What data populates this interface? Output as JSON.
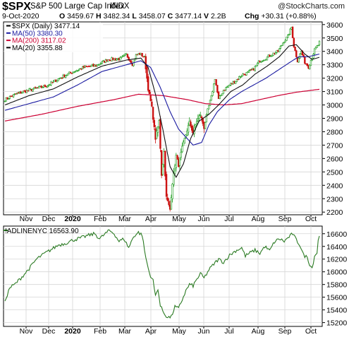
{
  "header": {
    "symbol": "$SPX",
    "name": "S&P 500 Large Cap Index",
    "exchange": "INDX",
    "watermark": "@StockCharts.com",
    "date": "9-Oct-2020",
    "open_label": "O",
    "open": "3459.67",
    "high_label": "H",
    "high": "3482.34",
    "low_label": "L",
    "low": "3458.07",
    "close_label": "C",
    "close": "3477.14",
    "volume_label": "V",
    "volume": "2.2B",
    "change_label": "Chg",
    "change": "+30.31 (+0.88%)"
  },
  "chart_data": [
    {
      "type": "candlestick",
      "legend": [
        {
          "label": "$SPX (Daily) 3477.14",
          "color": "#000000"
        },
        {
          "label": "MA(50) 3380.30",
          "color": "#1a1aa0"
        },
        {
          "label": "MA(200) 3117.02",
          "color": "#cc0033"
        },
        {
          "label": "MA(20) 3355.88",
          "color": "#000000"
        }
      ],
      "colors": {
        "up": "#1a9a1a",
        "down": "#cc1111",
        "ma50": "#1a1aa0",
        "ma200": "#cc0033",
        "ma20": "#111111"
      },
      "ylim": [
        2180,
        3620
      ],
      "yticks": [
        2200,
        2300,
        2400,
        2500,
        2600,
        2700,
        2800,
        2900,
        3000,
        3100,
        3200,
        3300,
        3400,
        3500,
        3600
      ],
      "x_months": [
        "Nov",
        "Dec",
        "2020",
        "Feb",
        "Mar",
        "Apr",
        "May",
        "Jun",
        "Jul",
        "Aug",
        "Sep",
        "Oct"
      ],
      "grid": true,
      "close_anchors": [
        [
          0,
          3040
        ],
        [
          10,
          3085
        ],
        [
          22,
          3115
        ],
        [
          35,
          3145
        ],
        [
          45,
          3200
        ],
        [
          55,
          3245
        ],
        [
          65,
          3280
        ],
        [
          75,
          3295
        ],
        [
          85,
          3340
        ],
        [
          95,
          3345
        ],
        [
          100,
          3375
        ],
        [
          105,
          3305
        ],
        [
          108,
          3370
        ],
        [
          111,
          3385
        ],
        [
          115,
          3355
        ],
        [
          118,
          3120
        ],
        [
          121,
          2980
        ],
        [
          124,
          2750
        ],
        [
          127,
          2880
        ],
        [
          129,
          2480
        ],
        [
          131,
          2650
        ],
        [
          133,
          2310
        ],
        [
          136,
          2220
        ],
        [
          138,
          2420
        ],
        [
          141,
          2620
        ],
        [
          143,
          2550
        ],
        [
          146,
          2680
        ],
        [
          149,
          2780
        ],
        [
          152,
          2870
        ],
        [
          155,
          2790
        ],
        [
          158,
          2880
        ],
        [
          161,
          2930
        ],
        [
          164,
          2830
        ],
        [
          167,
          2960
        ],
        [
          170,
          3060
        ],
        [
          173,
          3200
        ],
        [
          176,
          3040
        ],
        [
          180,
          3110
        ],
        [
          185,
          3150
        ],
        [
          190,
          3180
        ],
        [
          195,
          3225
        ],
        [
          200,
          3240
        ],
        [
          205,
          3270
        ],
        [
          210,
          3330
        ],
        [
          215,
          3350
        ],
        [
          220,
          3380
        ],
        [
          225,
          3400
        ],
        [
          230,
          3480
        ],
        [
          233,
          3510
        ],
        [
          236,
          3580
        ],
        [
          238,
          3440
        ],
        [
          241,
          3330
        ],
        [
          244,
          3400
        ],
        [
          247,
          3320
        ],
        [
          250,
          3285
        ],
        [
          253,
          3360
        ],
        [
          255,
          3410
        ],
        [
          258,
          3447
        ],
        [
          259,
          3477
        ]
      ],
      "ma_anchors": {
        "ma50": [
          [
            0,
            2960
          ],
          [
            20,
            3010
          ],
          [
            40,
            3060
          ],
          [
            60,
            3150
          ],
          [
            80,
            3250
          ],
          [
            100,
            3300
          ],
          [
            112,
            3330
          ],
          [
            120,
            3280
          ],
          [
            128,
            3130
          ],
          [
            136,
            2950
          ],
          [
            143,
            2820
          ],
          [
            150,
            2750
          ],
          [
            155,
            2700
          ],
          [
            162,
            2720
          ],
          [
            168,
            2850
          ],
          [
            175,
            2950
          ],
          [
            185,
            3040
          ],
          [
            195,
            3100
          ],
          [
            205,
            3150
          ],
          [
            215,
            3200
          ],
          [
            225,
            3260
          ],
          [
            235,
            3320
          ],
          [
            242,
            3360
          ],
          [
            250,
            3360
          ],
          [
            259,
            3380
          ]
        ],
        "ma200": [
          [
            0,
            2880
          ],
          [
            30,
            2930
          ],
          [
            60,
            2990
          ],
          [
            90,
            3040
          ],
          [
            110,
            3080
          ],
          [
            130,
            3070
          ],
          [
            150,
            3040
          ],
          [
            165,
            3010
          ],
          [
            180,
            3000
          ],
          [
            195,
            3010
          ],
          [
            210,
            3040
          ],
          [
            225,
            3070
          ],
          [
            240,
            3095
          ],
          [
            259,
            3117
          ]
        ],
        "ma20": [
          [
            0,
            3000
          ],
          [
            20,
            3070
          ],
          [
            40,
            3120
          ],
          [
            60,
            3210
          ],
          [
            80,
            3290
          ],
          [
            100,
            3335
          ],
          [
            112,
            3350
          ],
          [
            118,
            3280
          ],
          [
            124,
            3080
          ],
          [
            130,
            2820
          ],
          [
            136,
            2540
          ],
          [
            141,
            2460
          ],
          [
            147,
            2560
          ],
          [
            153,
            2750
          ],
          [
            160,
            2880
          ],
          [
            168,
            2930
          ],
          [
            176,
            3000
          ],
          [
            186,
            3100
          ],
          [
            196,
            3150
          ],
          [
            206,
            3230
          ],
          [
            216,
            3290
          ],
          [
            226,
            3360
          ],
          [
            234,
            3440
          ],
          [
            240,
            3450
          ],
          [
            247,
            3380
          ],
          [
            253,
            3340
          ],
          [
            259,
            3356
          ]
        ]
      }
    },
    {
      "type": "line",
      "legend": [
        {
          "label": "!ADLINENYC 16563.90",
          "color": "#000000"
        }
      ],
      "series": [
        {
          "name": "!ADLINENYC",
          "color": "#2a7a22"
        }
      ],
      "ylim": [
        15140,
        16720
      ],
      "yticks": [
        15200,
        15400,
        15600,
        15800,
        16000,
        16200,
        16400,
        16600
      ],
      "x_months": [
        "Nov",
        "Dec",
        "2020",
        "Feb",
        "Mar",
        "Apr",
        "May",
        "Jun",
        "Jul",
        "Aug",
        "Sep",
        "Oct"
      ],
      "grid": true,
      "anchors": [
        [
          0,
          15540
        ],
        [
          4,
          15750
        ],
        [
          8,
          15800
        ],
        [
          14,
          15920
        ],
        [
          20,
          16050
        ],
        [
          26,
          16200
        ],
        [
          32,
          16280
        ],
        [
          38,
          16350
        ],
        [
          44,
          16420
        ],
        [
          50,
          16450
        ],
        [
          56,
          16500
        ],
        [
          62,
          16530
        ],
        [
          68,
          16570
        ],
        [
          74,
          16600
        ],
        [
          78,
          16520
        ],
        [
          82,
          16590
        ],
        [
          86,
          16650
        ],
        [
          90,
          16600
        ],
        [
          94,
          16480
        ],
        [
          98,
          16520
        ],
        [
          102,
          16380
        ],
        [
          106,
          16560
        ],
        [
          110,
          16620
        ],
        [
          113,
          16580
        ],
        [
          116,
          16220
        ],
        [
          119,
          15980
        ],
        [
          122,
          15860
        ],
        [
          124,
          15620
        ],
        [
          126,
          15740
        ],
        [
          128,
          15460
        ],
        [
          131,
          15350
        ],
        [
          134,
          15280
        ],
        [
          137,
          15290
        ],
        [
          140,
          15450
        ],
        [
          143,
          15420
        ],
        [
          146,
          15560
        ],
        [
          149,
          15700
        ],
        [
          152,
          15800
        ],
        [
          155,
          15780
        ],
        [
          158,
          15880
        ],
        [
          161,
          15970
        ],
        [
          164,
          15900
        ],
        [
          168,
          16030
        ],
        [
          172,
          16120
        ],
        [
          176,
          16200
        ],
        [
          180,
          16150
        ],
        [
          185,
          16260
        ],
        [
          190,
          16330
        ],
        [
          195,
          16380
        ],
        [
          198,
          16250
        ],
        [
          202,
          16300
        ],
        [
          206,
          16340
        ],
        [
          210,
          16290
        ],
        [
          214,
          16400
        ],
        [
          218,
          16330
        ],
        [
          222,
          16470
        ],
        [
          226,
          16520
        ],
        [
          230,
          16480
        ],
        [
          234,
          16550
        ],
        [
          237,
          16600
        ],
        [
          240,
          16500
        ],
        [
          243,
          16420
        ],
        [
          246,
          16260
        ],
        [
          249,
          16230
        ],
        [
          251,
          16120
        ],
        [
          253,
          16060
        ],
        [
          255,
          16250
        ],
        [
          257,
          16300
        ],
        [
          258,
          16500
        ],
        [
          259,
          16564
        ]
      ]
    }
  ]
}
